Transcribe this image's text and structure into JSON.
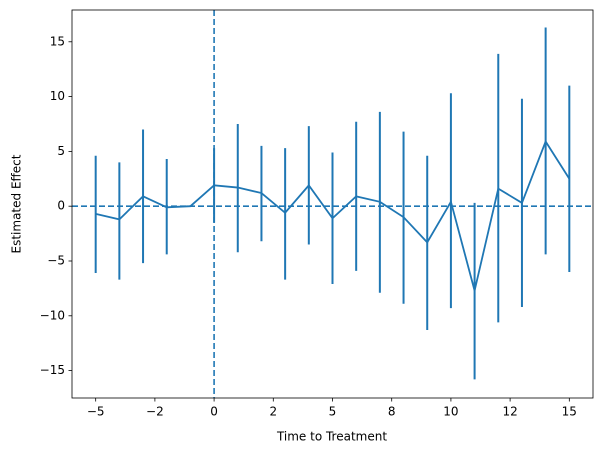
{
  "chart_data": {
    "type": "errorbar",
    "x_label": "Time to Treatment",
    "y_label": "Estimated Effect",
    "x": [
      -5,
      -4,
      -3,
      -2,
      -1,
      0,
      1,
      2,
      3,
      4,
      5,
      6,
      7,
      8,
      9,
      10,
      11,
      12,
      13,
      14,
      15
    ],
    "series": [
      {
        "color": "#1f77b4",
        "values": [
          -0.7,
          -1.2,
          0.9,
          -0.1,
          0,
          1.9,
          1.7,
          1.2,
          -0.6,
          1.9,
          -1.1,
          0.9,
          0.4,
          -1.0,
          -3.3,
          0.4,
          -7.7,
          1.6,
          0.3,
          5.9,
          2.5
        ],
        "lower": [
          -6.1,
          -6.7,
          -5.2,
          -4.4,
          null,
          -1.5,
          -4.2,
          -3.2,
          -6.7,
          -3.5,
          -7.1,
          -5.9,
          -7.9,
          -8.9,
          -11.3,
          -9.3,
          -15.8,
          -10.6,
          -9.2,
          -4.4,
          -6.0
        ],
        "upper": [
          4.6,
          4.0,
          7.0,
          4.3,
          null,
          5.3,
          7.5,
          5.5,
          5.3,
          7.3,
          4.9,
          7.7,
          8.6,
          6.8,
          4.6,
          10.3,
          0.3,
          13.9,
          9.8,
          16.3,
          11.0
        ]
      }
    ],
    "reference_lines": {
      "y": 0,
      "x": 0
    },
    "xlim": [
      -6,
      16
    ],
    "ylim": [
      -17.5,
      17.9
    ],
    "xticks": [
      {
        "value": -5,
        "label": "−5"
      },
      {
        "value": -2.5,
        "label": "−2"
      },
      0,
      {
        "value": 2.5,
        "label": "2"
      },
      5,
      {
        "value": 7.5,
        "label": "8"
      },
      10,
      {
        "value": 12.5,
        "label": "12"
      },
      15
    ],
    "yticks": [
      {
        "value": -15,
        "label": "−15"
      },
      {
        "value": -10,
        "label": "−10"
      },
      {
        "value": -5,
        "label": "−5"
      },
      0,
      5,
      10,
      15
    ]
  }
}
